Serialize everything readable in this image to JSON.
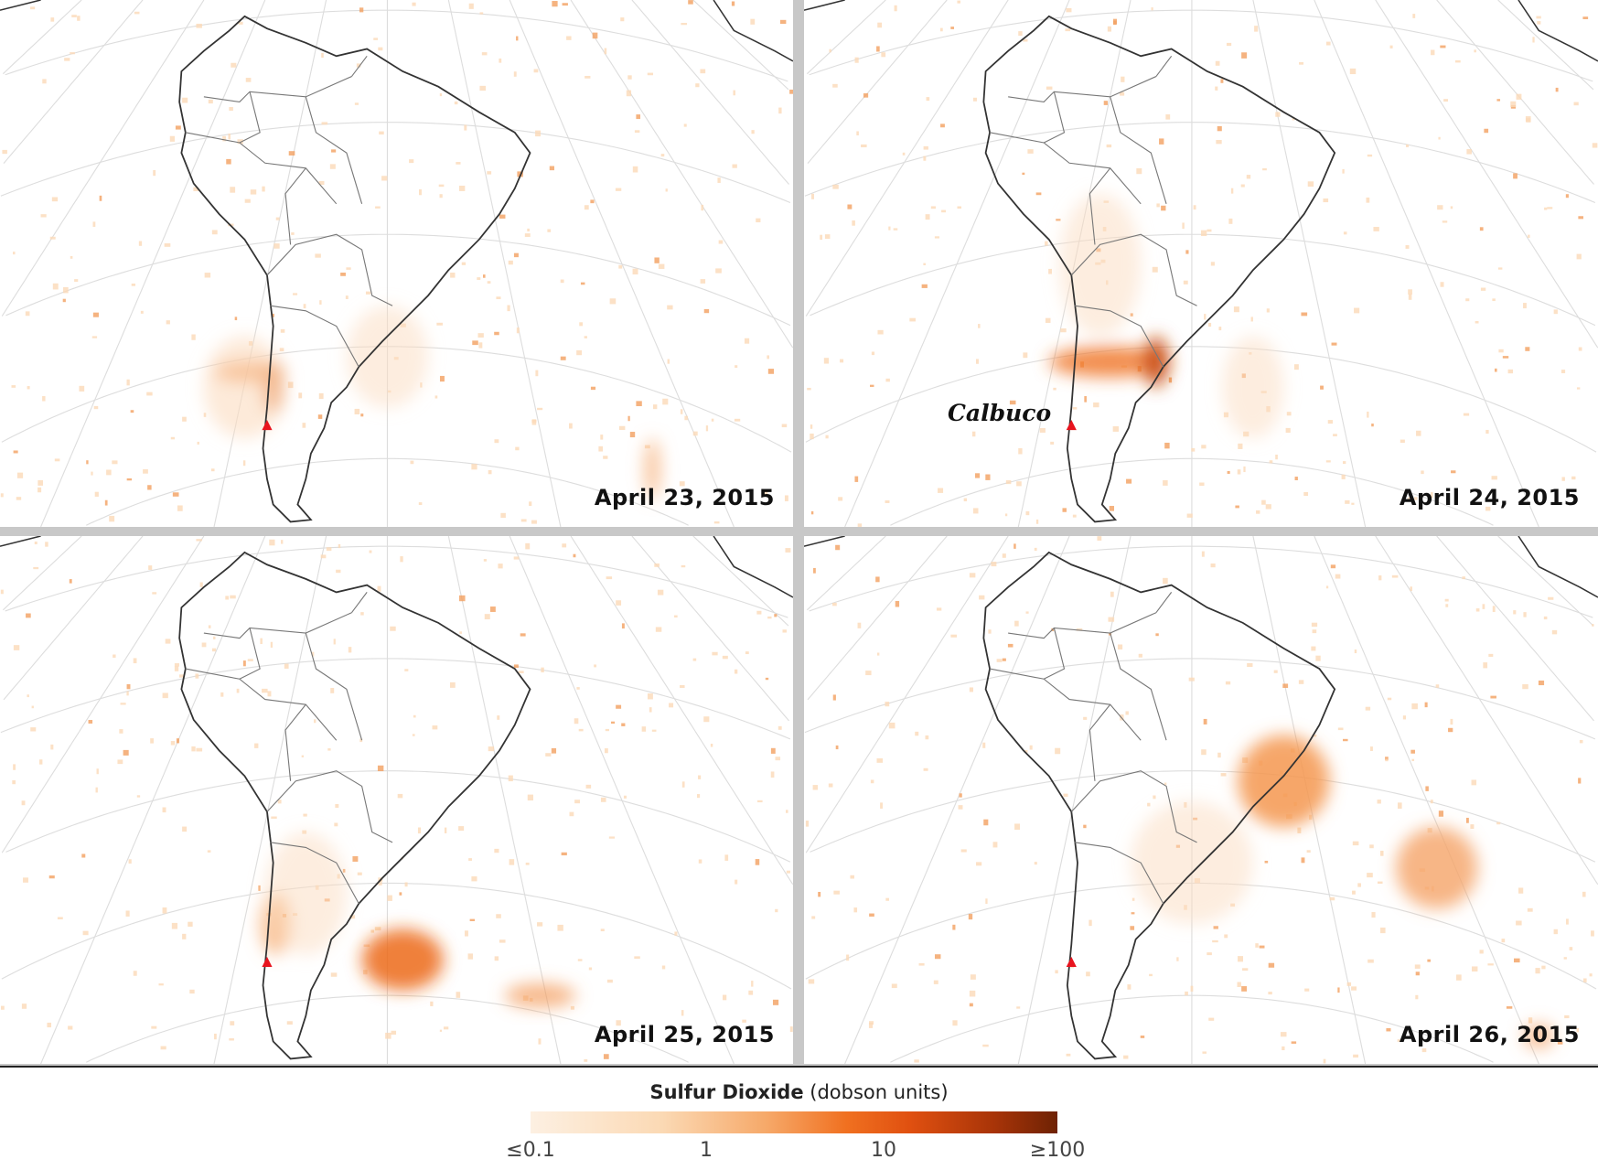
{
  "panels": [
    {
      "date": "April 23, 2015"
    },
    {
      "date": "April 24, 2015",
      "volcano_label": "Calbuco"
    },
    {
      "date": "April 25, 2015"
    },
    {
      "date": "April 26, 2015"
    }
  ],
  "legend": {
    "title_bold": "Sulfur Dioxide",
    "title_units": "(dobson units)",
    "ticks": [
      "≤0.1",
      "1",
      "10",
      "≥100"
    ],
    "colors": [
      "#fdf0e2",
      "#f6a868",
      "#f07020",
      "#6e2204"
    ]
  },
  "volcano_marker_color": "#e8141e"
}
